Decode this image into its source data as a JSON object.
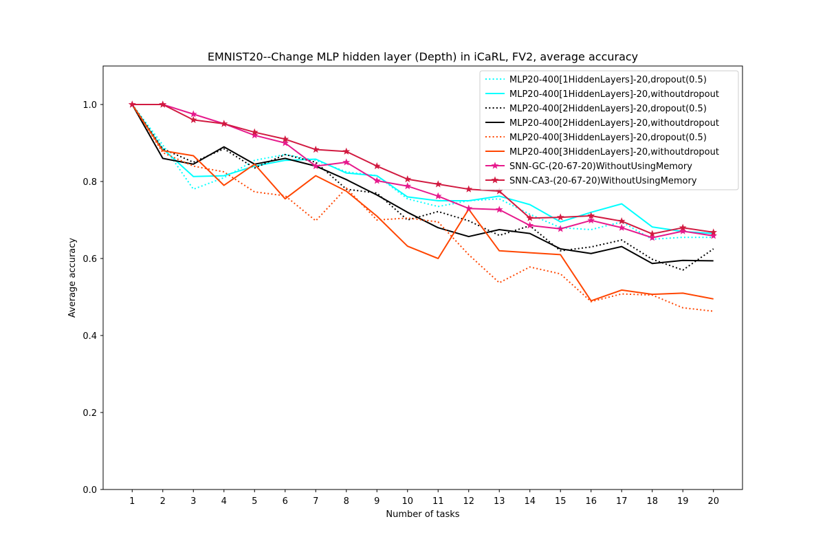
{
  "chart_data": {
    "type": "line",
    "title": "EMNIST20--Change MLP hidden layer (Depth) in iCaRL, FV2, average accuracy",
    "xlabel": "Number of tasks",
    "ylabel": "Average accuracy",
    "x": [
      1,
      2,
      3,
      4,
      5,
      6,
      7,
      8,
      9,
      10,
      11,
      12,
      13,
      14,
      15,
      16,
      17,
      18,
      19,
      20
    ],
    "xticks": [
      "1",
      "2",
      "3",
      "4",
      "5",
      "6",
      "7",
      "8",
      "9",
      "10",
      "11",
      "12",
      "13",
      "14",
      "15",
      "16",
      "17",
      "18",
      "19",
      "20"
    ],
    "yticks": [
      "0.0",
      "0.2",
      "0.4",
      "0.6",
      "0.8",
      "1.0"
    ],
    "xlim": [
      0.05,
      20.95
    ],
    "ylim": [
      0.0,
      1.1
    ],
    "grid": false,
    "legend_position": "top-right",
    "series": [
      {
        "name": "MLP20-400[1HiddenLayers]-20,dropout(0.5)",
        "color": "#00ffff",
        "style": "dotted",
        "marker": "none",
        "values": [
          1.0,
          0.895,
          0.78,
          0.81,
          0.855,
          0.87,
          0.855,
          0.825,
          0.815,
          0.755,
          0.735,
          0.75,
          0.755,
          0.715,
          0.68,
          0.675,
          0.695,
          0.65,
          0.655,
          0.655
        ]
      },
      {
        "name": "MLP20-400[1HiddenLayers]-20,withoutdropout",
        "color": "#00ffff",
        "style": "solid",
        "marker": "none",
        "values": [
          1.0,
          0.885,
          0.813,
          0.815,
          0.84,
          0.855,
          0.858,
          0.822,
          0.815,
          0.76,
          0.75,
          0.75,
          0.762,
          0.74,
          0.695,
          0.72,
          0.742,
          0.682,
          0.67,
          0.665
        ]
      },
      {
        "name": "MLP20-400[2HiddenLayers]-20,dropout(0.5)",
        "color": "#000000",
        "style": "dotted",
        "marker": "none",
        "values": [
          1.0,
          0.885,
          0.85,
          0.885,
          0.835,
          0.87,
          0.85,
          0.78,
          0.77,
          0.7,
          0.722,
          0.698,
          0.66,
          0.685,
          0.62,
          0.63,
          0.648,
          0.598,
          0.57,
          0.625
        ]
      },
      {
        "name": "MLP20-400[2HiddenLayers]-20,withoutdropout",
        "color": "#000000",
        "style": "solid",
        "marker": "none",
        "values": [
          1.0,
          0.86,
          0.845,
          0.89,
          0.845,
          0.86,
          0.84,
          0.805,
          0.765,
          0.72,
          0.68,
          0.657,
          0.675,
          0.665,
          0.625,
          0.613,
          0.631,
          0.587,
          0.595,
          0.594
        ]
      },
      {
        "name": "MLP20-400[3HiddenLayers]-20,dropout(0.5)",
        "color": "#ff4500",
        "style": "dotted",
        "marker": "none",
        "values": [
          1.0,
          0.875,
          0.84,
          0.825,
          0.773,
          0.763,
          0.698,
          0.783,
          0.7,
          0.705,
          0.695,
          0.61,
          0.537,
          0.578,
          0.56,
          0.488,
          0.508,
          0.505,
          0.472,
          0.463
        ]
      },
      {
        "name": "MLP20-400[3HiddenLayers]-20,withoutdropout",
        "color": "#ff4500",
        "style": "solid",
        "marker": "none",
        "values": [
          1.0,
          0.88,
          0.867,
          0.79,
          0.845,
          0.755,
          0.815,
          0.775,
          0.71,
          0.632,
          0.6,
          0.728,
          0.62,
          0.615,
          0.61,
          0.49,
          0.518,
          0.507,
          0.51,
          0.495
        ]
      },
      {
        "name": "SNN-GC-(20-67-20)WithoutUsingMemory",
        "color": "#e6198c",
        "style": "solid",
        "marker": "star",
        "values": [
          1.0,
          1.0,
          0.975,
          0.95,
          0.92,
          0.9,
          0.84,
          0.85,
          0.802,
          0.788,
          0.762,
          0.73,
          0.727,
          0.686,
          0.677,
          0.699,
          0.68,
          0.654,
          0.671,
          0.659
        ]
      },
      {
        "name": "SNN-CA3-(20-67-20)WithoutUsingMemory",
        "color": "#d11a40",
        "style": "solid",
        "marker": "star",
        "values": [
          1.0,
          1.0,
          0.96,
          0.95,
          0.928,
          0.91,
          0.883,
          0.878,
          0.84,
          0.806,
          0.793,
          0.78,
          0.775,
          0.705,
          0.707,
          0.711,
          0.697,
          0.664,
          0.68,
          0.668
        ]
      }
    ]
  }
}
